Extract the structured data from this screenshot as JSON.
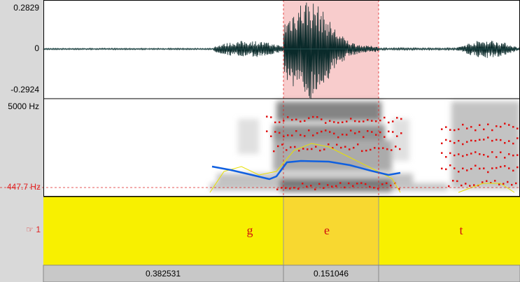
{
  "waveform": {
    "max_label": "0.2829",
    "zero_label": "0",
    "min_label": "-0.2924"
  },
  "spectrogram": {
    "top_label": "5000 Hz",
    "cursor_label": "447.7 Hz"
  },
  "tier": {
    "name": "☞ 1",
    "intervals": [
      "g",
      "e",
      "t"
    ]
  },
  "durations": [
    "0.382531",
    "0.151046"
  ]
}
